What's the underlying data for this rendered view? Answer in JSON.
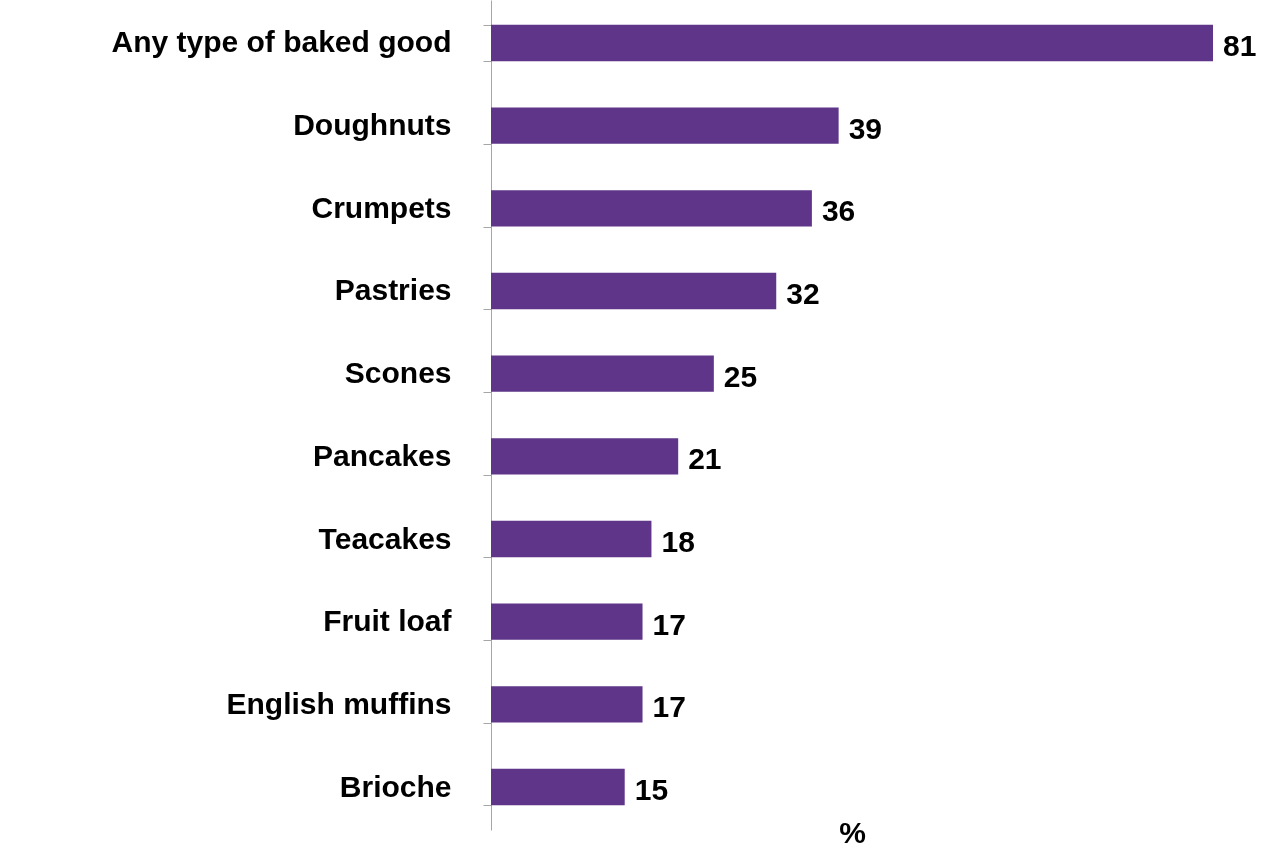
{
  "chart_data": {
    "type": "bar",
    "orientation": "horizontal",
    "xlabel": "%",
    "categories": [
      "Any type of baked good",
      "Doughnuts",
      "Crumpets",
      "Pastries",
      "Scones",
      "Pancakes",
      "Teacakes",
      "Fruit loaf",
      "English muffins",
      "Brioche"
    ],
    "values": [
      81,
      39,
      36,
      32,
      25,
      21,
      18,
      17,
      17,
      15
    ],
    "color": "#5e3589",
    "data_labels": true,
    "tick_labels": "y"
  }
}
